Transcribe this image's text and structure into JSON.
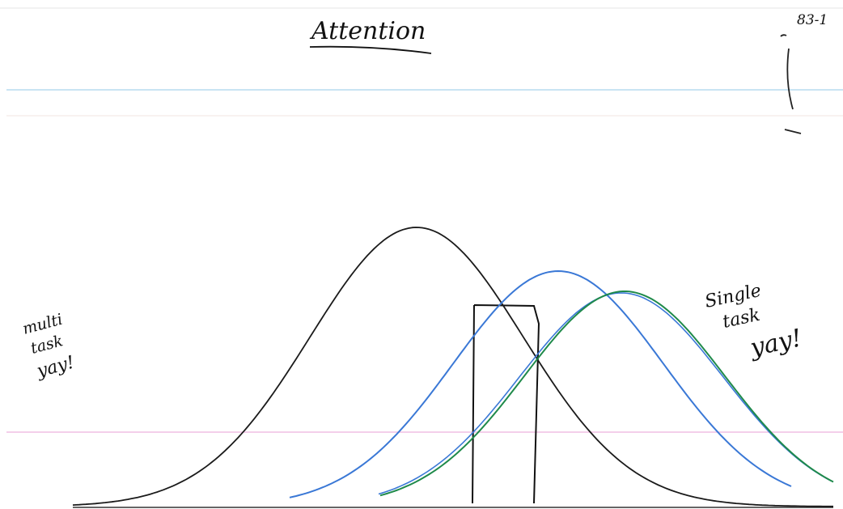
{
  "card": {
    "title": "Attention",
    "corner_note": "83-1",
    "left_note": [
      "multi",
      "task",
      "yay!"
    ],
    "right_note": [
      "Single",
      "task",
      "yay!"
    ]
  }
}
